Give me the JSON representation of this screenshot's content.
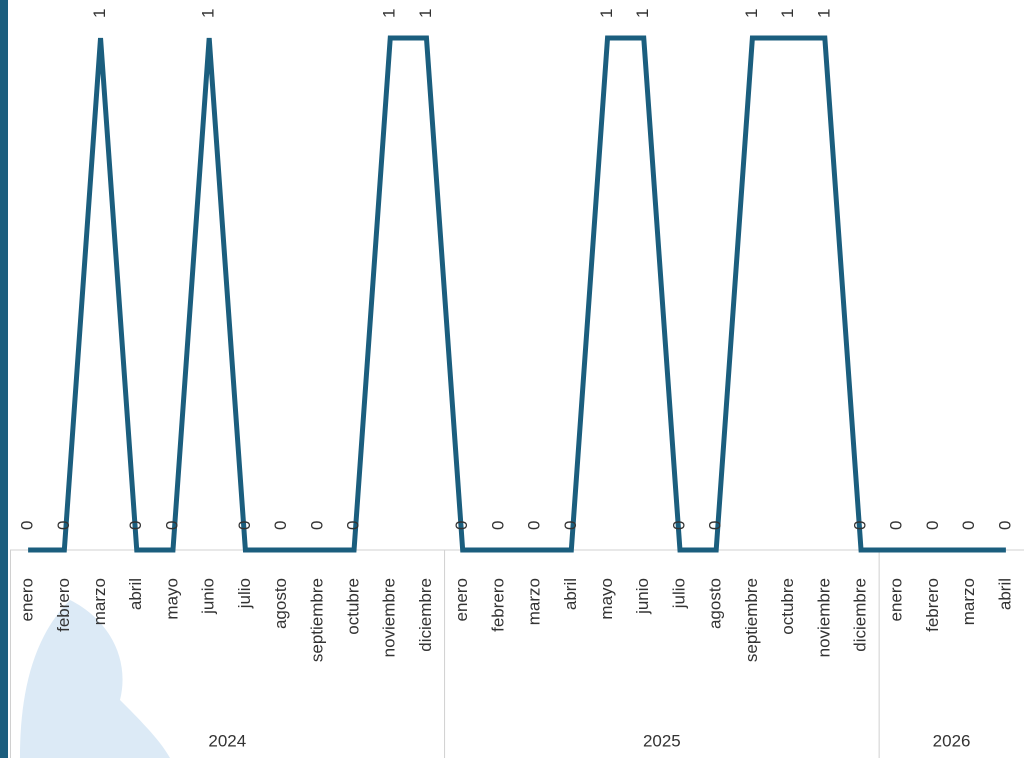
{
  "chart_data": {
    "type": "line",
    "color": "#1b5e7e",
    "category_groups": [
      {
        "name": "2024",
        "categories": [
          "enero",
          "febrero",
          "marzo",
          "abril",
          "mayo",
          "junio",
          "julio",
          "agosto",
          "septiembre",
          "octubre",
          "noviembre",
          "diciembre"
        ]
      },
      {
        "name": "2025",
        "categories": [
          "enero",
          "febrero",
          "marzo",
          "abril",
          "mayo",
          "junio",
          "julio",
          "agosto",
          "septiembre",
          "octubre",
          "noviembre",
          "diciembre"
        ]
      },
      {
        "name": "2026",
        "categories": [
          "enero",
          "febrero",
          "marzo",
          "abril"
        ]
      }
    ],
    "values": [
      0,
      0,
      1,
      0,
      0,
      1,
      0,
      0,
      0,
      0,
      1,
      1,
      0,
      0,
      0,
      0,
      1,
      1,
      0,
      0,
      1,
      1,
      1,
      0,
      0,
      0,
      0,
      0
    ]
  }
}
